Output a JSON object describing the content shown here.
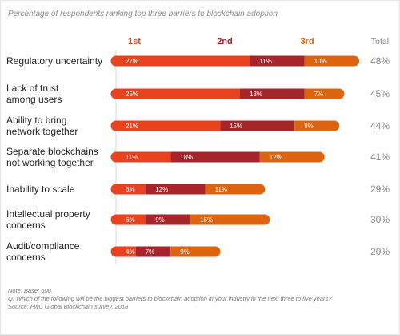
{
  "chart_data": {
    "type": "bar",
    "orientation": "horizontal",
    "stacked": true,
    "title": "Percentage of respondents ranking top three barriers to blockchain adoption",
    "series": [
      {
        "name": "1st",
        "values": [
          27,
          25,
          21,
          11,
          6,
          6,
          4
        ]
      },
      {
        "name": "2nd",
        "values": [
          11,
          13,
          15,
          18,
          12,
          9,
          7
        ]
      },
      {
        "name": "3rd",
        "values": [
          10,
          7,
          8,
          12,
          11,
          15,
          9
        ]
      }
    ],
    "categories": [
      [
        "Regulatory uncertainty"
      ],
      [
        "Lack of trust",
        "among users"
      ],
      [
        "Ability to bring",
        "network together"
      ],
      [
        "Separate blockchains",
        "not working together"
      ],
      [
        "Inability to scale"
      ],
      [
        "Intellectual property",
        "concerns"
      ],
      [
        "Audit/compliance",
        "concerns"
      ]
    ],
    "totals_header": "Total",
    "totals": [
      "48%",
      "45%",
      "44%",
      "41%",
      "29%",
      "30%",
      "20%"
    ],
    "xlim": [
      0,
      48
    ],
    "grid": false,
    "colors": {
      "1st": "#e8421f",
      "2nd": "#a6252b",
      "3rd": "#dd6410",
      "label_1st": "#e8421f",
      "label_2nd": "#a6252b",
      "label_3rd": "#dd6410",
      "text": "#222222",
      "muted": "#8a8a8a",
      "divider": "#d9d9d9"
    }
  },
  "notes": [
    "Note: Base: 600.",
    "Q: Which of the following will be the biggest barriers to blockchain adoption in your industry in the next three to five years?",
    "Source: PwC Global Blockchain survey, 2018"
  ]
}
